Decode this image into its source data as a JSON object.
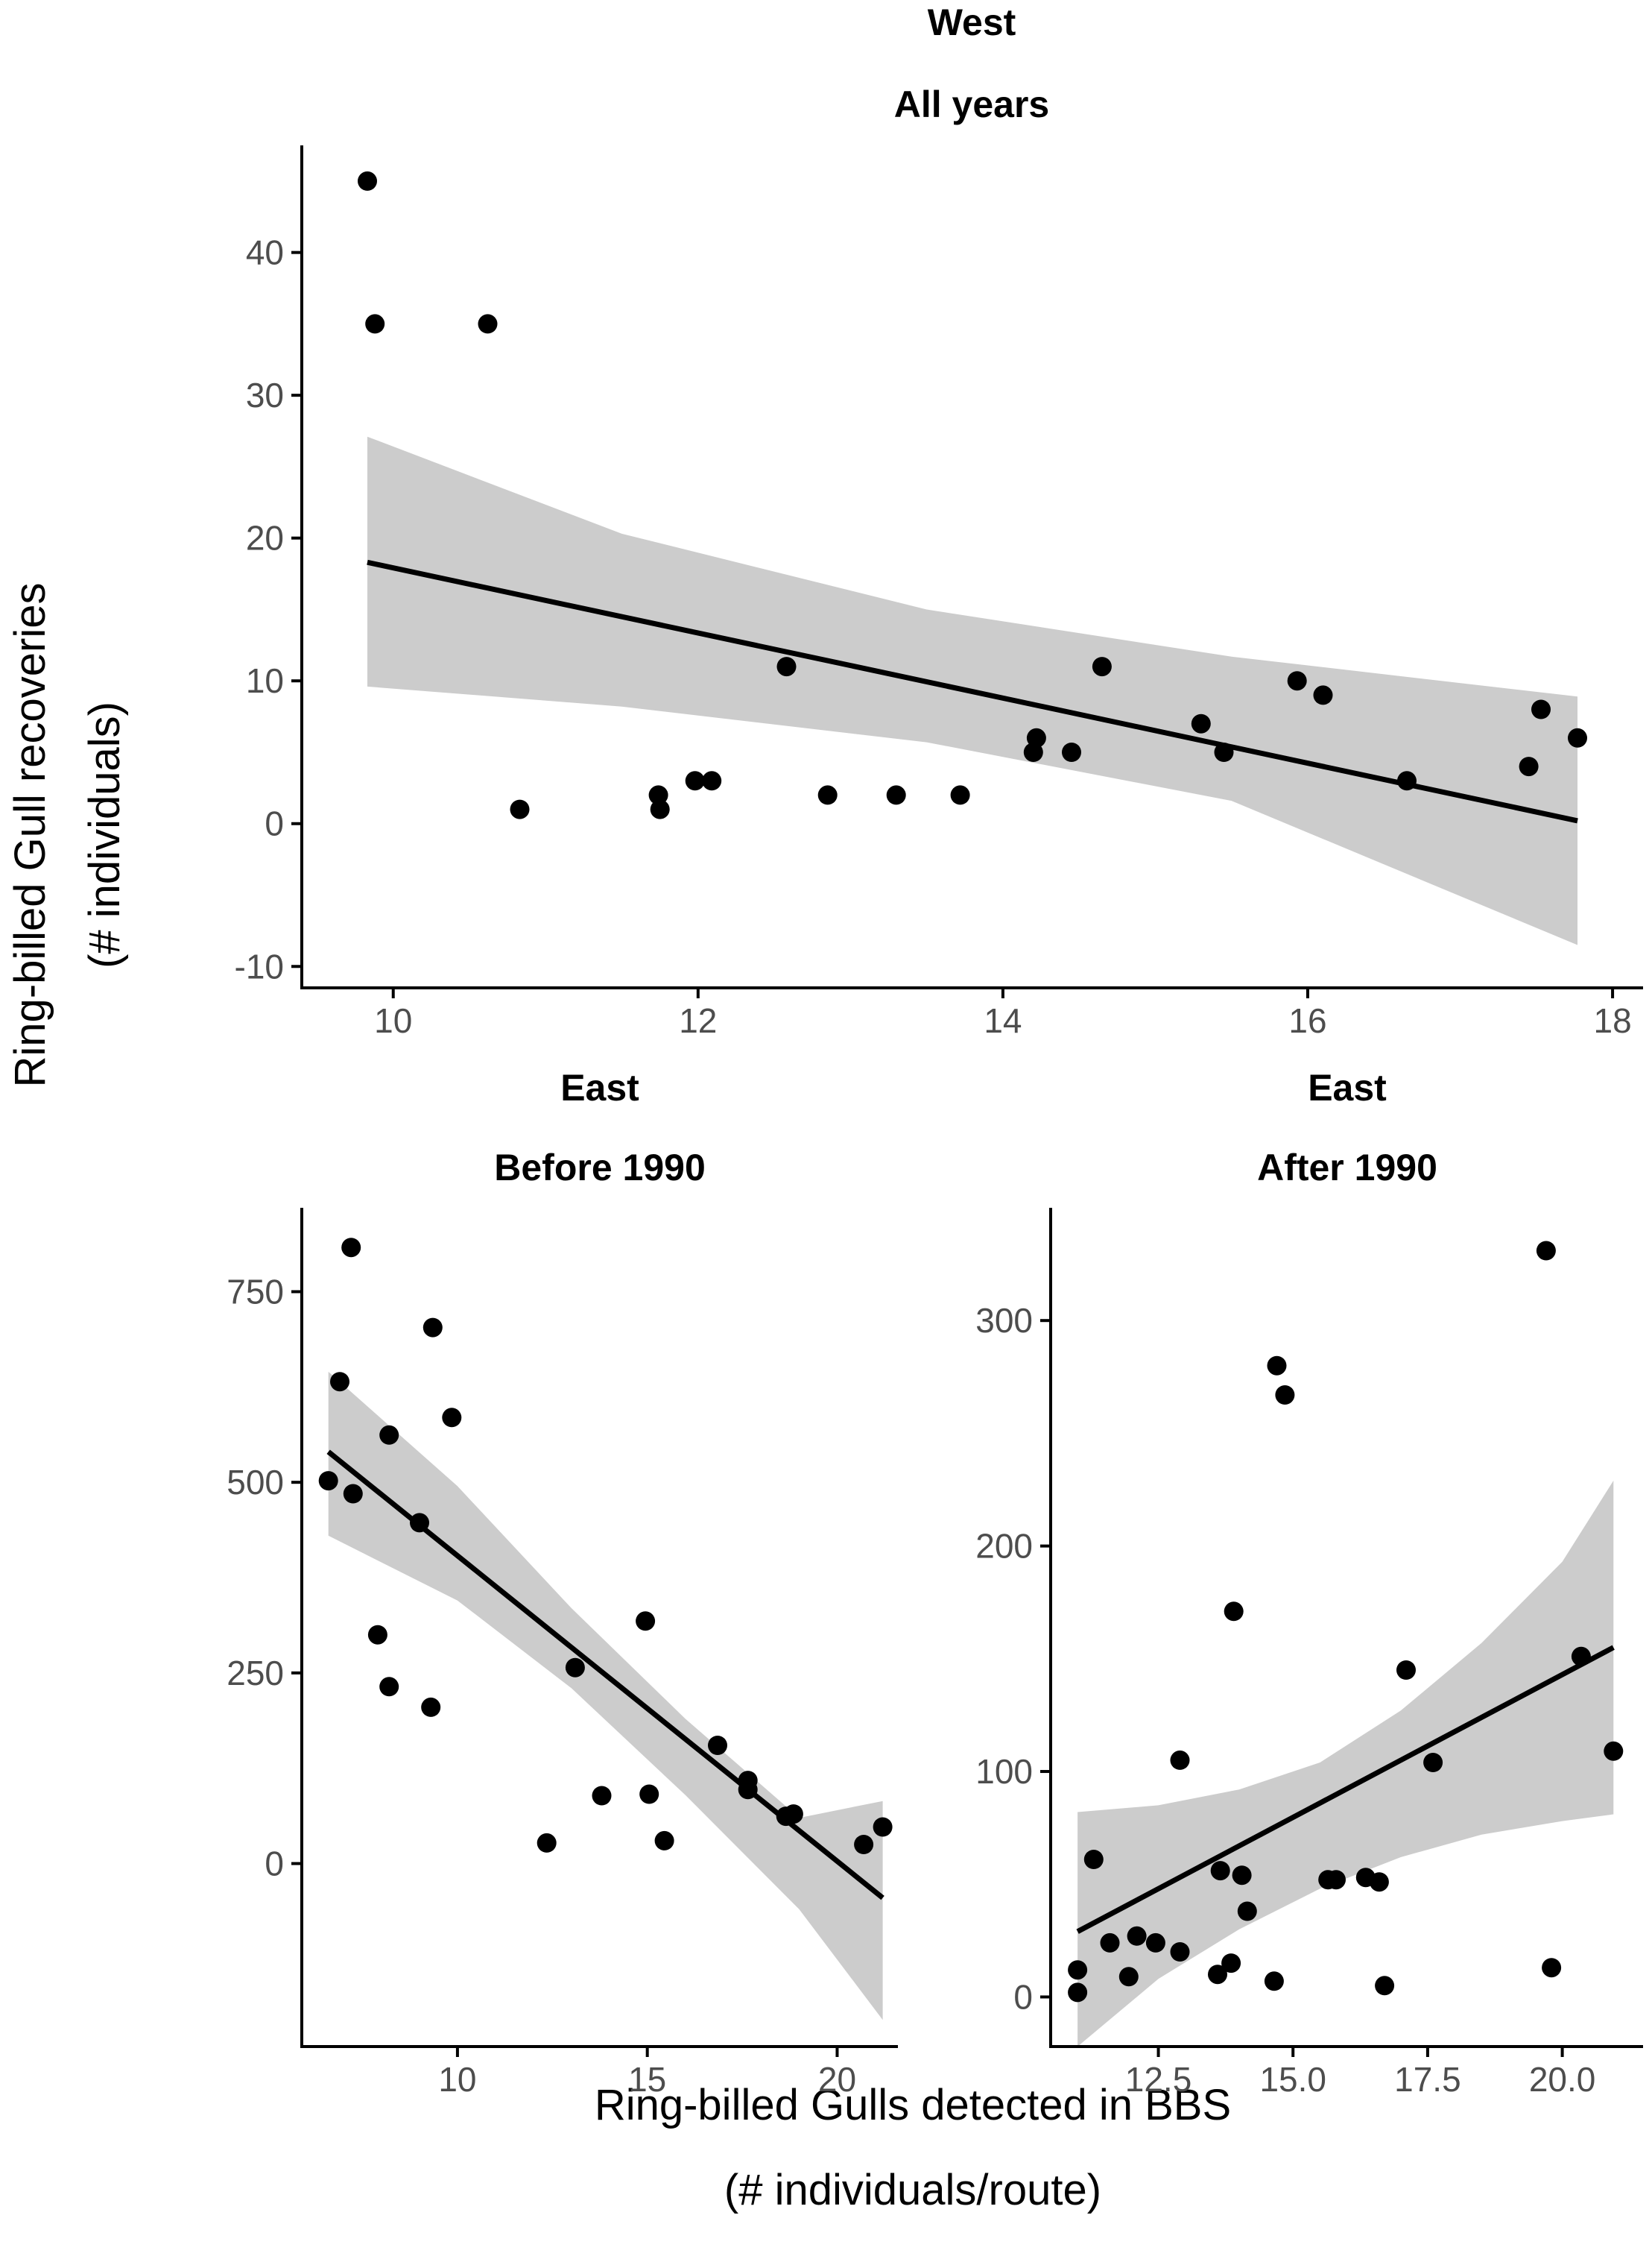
{
  "figure": {
    "ylabel_line1": "Ring-billed Gull recoveries",
    "ylabel_line2": "(# individuals)",
    "xlabel_line1": "Ring-billed Gulls detected in BBS",
    "xlabel_line2": "(# individuals/route)"
  },
  "colors": {
    "points": "#000000",
    "ribbon": "#cccccc",
    "line": "#000000",
    "tick_text": "#4d4d4d"
  },
  "chart_data": [
    {
      "id": "west",
      "type": "scatter",
      "title": "West",
      "subtitle": "All years",
      "xlim": [
        9.4,
        18.2
      ],
      "ylim": [
        -11.5,
        47.5
      ],
      "xticks": [
        10,
        12,
        14,
        16,
        18
      ],
      "xtick_labels": [
        "10",
        "12",
        "14",
        "16",
        "18"
      ],
      "yticks": [
        -10,
        0,
        10,
        20,
        30,
        40
      ],
      "ytick_labels": [
        "-10",
        "0",
        "10",
        "20",
        "30",
        "40"
      ],
      "points": [
        [
          9.83,
          45
        ],
        [
          9.88,
          35
        ],
        [
          10.62,
          35
        ],
        [
          10.83,
          1
        ],
        [
          11.74,
          2
        ],
        [
          11.75,
          1
        ],
        [
          11.98,
          3
        ],
        [
          12.09,
          3
        ],
        [
          12.58,
          11
        ],
        [
          12.85,
          2
        ],
        [
          13.3,
          2
        ],
        [
          13.72,
          2
        ],
        [
          14.2,
          5
        ],
        [
          14.22,
          6
        ],
        [
          14.45,
          5
        ],
        [
          14.65,
          11
        ],
        [
          15.3,
          7
        ],
        [
          15.45,
          5
        ],
        [
          15.93,
          10
        ],
        [
          16.1,
          9
        ],
        [
          16.65,
          3
        ],
        [
          17.45,
          4
        ],
        [
          17.53,
          8
        ],
        [
          17.77,
          6
        ]
      ],
      "fit": {
        "x": [
          9.83,
          17.77
        ],
        "y": [
          18.3,
          0.2
        ]
      },
      "band": {
        "x": [
          9.83,
          11.5,
          13.5,
          15.5,
          17.77
        ],
        "lower": [
          9.6,
          8.2,
          5.7,
          1.6,
          -8.5
        ],
        "upper": [
          27.1,
          20.3,
          15.0,
          11.7,
          8.9
        ]
      }
    },
    {
      "id": "east-before",
      "type": "scatter",
      "title": "East",
      "subtitle": "Before 1990",
      "xlim": [
        5.9,
        21.6
      ],
      "ylim": [
        -240,
        860
      ],
      "xticks": [
        10,
        15,
        20
      ],
      "xtick_labels": [
        "10",
        "15",
        "20"
      ],
      "yticks": [
        0,
        250,
        500,
        750
      ],
      "ytick_labels": [
        "0",
        "250",
        "500",
        "750"
      ],
      "points": [
        [
          6.6,
          502
        ],
        [
          6.9,
          632
        ],
        [
          7.2,
          808
        ],
        [
          7.25,
          485
        ],
        [
          7.9,
          300
        ],
        [
          8.2,
          562
        ],
        [
          8.2,
          232
        ],
        [
          9.0,
          447
        ],
        [
          9.3,
          205
        ],
        [
          9.35,
          703
        ],
        [
          9.85,
          585
        ],
        [
          12.35,
          27
        ],
        [
          13.1,
          257
        ],
        [
          13.8,
          89
        ],
        [
          14.95,
          318
        ],
        [
          15.05,
          91
        ],
        [
          15.45,
          30
        ],
        [
          16.85,
          155
        ],
        [
          17.65,
          97
        ],
        [
          17.65,
          109
        ],
        [
          18.65,
          62
        ],
        [
          18.85,
          65
        ],
        [
          20.7,
          25
        ],
        [
          21.2,
          48
        ]
      ],
      "fit": {
        "x": [
          6.6,
          21.2
        ],
        "y": [
          540,
          -45
        ]
      },
      "band": {
        "x": [
          6.6,
          10,
          13,
          16,
          19,
          21.2
        ],
        "lower": [
          430,
          345,
          230,
          90,
          -60,
          -205
        ],
        "upper": [
          645,
          495,
          335,
          190,
          60,
          82
        ]
      }
    },
    {
      "id": "east-after",
      "type": "scatter",
      "title": "East",
      "subtitle": "After 1990",
      "xlim": [
        10.5,
        21.5
      ],
      "ylim": [
        -22,
        350
      ],
      "xticks": [
        12.5,
        15.0,
        17.5,
        20.0
      ],
      "xtick_labels": [
        "12.5",
        "15.0",
        "17.5",
        "20.0"
      ],
      "yticks": [
        0,
        100,
        200,
        300
      ],
      "ytick_labels": [
        "0",
        "100",
        "200",
        "300"
      ],
      "points": [
        [
          11.0,
          2
        ],
        [
          11.0,
          12
        ],
        [
          11.3,
          61
        ],
        [
          11.6,
          24
        ],
        [
          11.95,
          9
        ],
        [
          12.1,
          27
        ],
        [
          12.45,
          24
        ],
        [
          12.9,
          20
        ],
        [
          12.9,
          105
        ],
        [
          13.6,
          10
        ],
        [
          13.65,
          56
        ],
        [
          13.85,
          15
        ],
        [
          13.9,
          171
        ],
        [
          14.05,
          54
        ],
        [
          14.15,
          38
        ],
        [
          14.65,
          7
        ],
        [
          14.7,
          280
        ],
        [
          14.85,
          267
        ],
        [
          15.65,
          52
        ],
        [
          15.8,
          52
        ],
        [
          16.35,
          53
        ],
        [
          16.6,
          51
        ],
        [
          16.7,
          5
        ],
        [
          17.1,
          145
        ],
        [
          17.6,
          104
        ],
        [
          19.7,
          331
        ],
        [
          19.8,
          13
        ],
        [
          20.35,
          151
        ],
        [
          20.95,
          109
        ]
      ],
      "fit": {
        "x": [
          11.0,
          20.95
        ],
        "y": [
          29,
          155
        ]
      },
      "band": {
        "x": [
          11.0,
          12.5,
          14.0,
          15.5,
          17.0,
          18.5,
          20.0,
          20.95
        ],
        "lower": [
          -22,
          8,
          30,
          48,
          62,
          72,
          78,
          81
        ],
        "upper": [
          82,
          85,
          92,
          104,
          127,
          157,
          193,
          229
        ]
      }
    }
  ]
}
